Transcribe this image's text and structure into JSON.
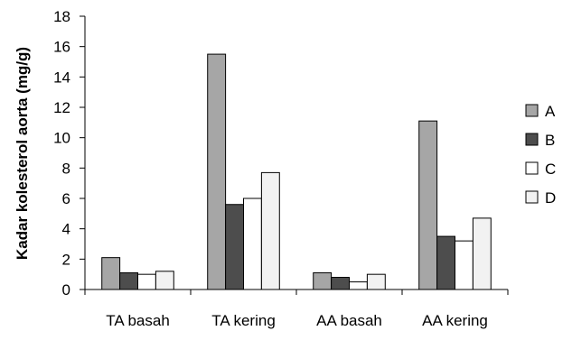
{
  "chart_data": {
    "type": "bar",
    "title": "",
    "xlabel": "",
    "ylabel": "Kadar kolesterol aorta (mg/g)",
    "ylim": [
      0,
      18
    ],
    "yticks": [
      0,
      2,
      4,
      6,
      8,
      10,
      12,
      14,
      16,
      18
    ],
    "categories": [
      "TA basah",
      "TA kering",
      "AA basah",
      "AA kering"
    ],
    "series": [
      {
        "name": "A",
        "color": "#a6a6a6",
        "values": [
          2.1,
          15.5,
          1.1,
          11.1
        ]
      },
      {
        "name": "B",
        "color": "#4d4d4d",
        "values": [
          1.1,
          5.6,
          0.8,
          3.5
        ]
      },
      {
        "name": "C",
        "color": "#ffffff",
        "values": [
          1.0,
          6.0,
          0.5,
          3.2
        ]
      },
      {
        "name": "D",
        "color": "#f2f2f2",
        "values": [
          1.2,
          7.7,
          1.0,
          4.7
        ]
      }
    ],
    "grid": false,
    "legend_position": "right"
  }
}
